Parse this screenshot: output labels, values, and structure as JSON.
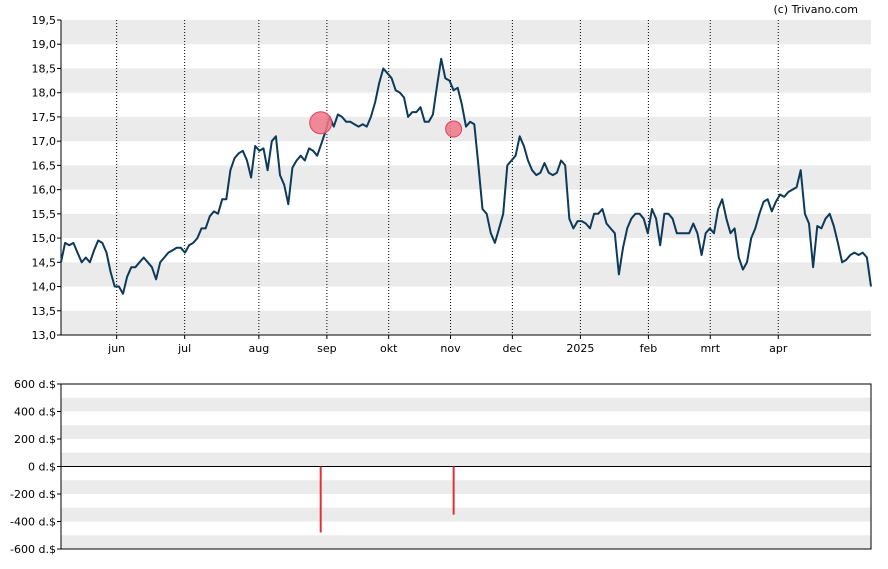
{
  "credit": "(c) Trivano.com",
  "colors": {
    "line": "#0d3a5a",
    "band": "#ebebeb",
    "marker": "#f0788a",
    "marker_stroke": "#e0405a",
    "bar": "#e0303a"
  },
  "chart_data": [
    {
      "type": "line",
      "title": "",
      "ylim": [
        13.0,
        19.5
      ],
      "y_ticks": [
        "13,0",
        "13,5",
        "14,0",
        "14,5",
        "15,0",
        "15,5",
        "16,0",
        "16,5",
        "17,0",
        "17,5",
        "18,0",
        "18,5",
        "19,0",
        "19,5"
      ],
      "grid": "alternating horizontal bands, dotted vertical month lines",
      "x_tick_labels": [
        "jun",
        "jul",
        "aug",
        "sep",
        "okt",
        "nov",
        "dec",
        "2025",
        "feb",
        "mrt",
        "apr"
      ],
      "x_tick_positions": [
        18,
        40,
        64,
        86,
        106,
        126,
        146,
        168,
        190,
        210,
        232
      ],
      "x_max": 262,
      "series": [
        {
          "values": [
            14.5,
            14.9,
            14.85,
            14.9,
            14.7,
            14.5,
            14.6,
            14.5,
            14.75,
            14.95,
            14.9,
            14.7,
            14.3,
            14.0,
            14.0,
            13.85,
            14.2,
            14.4,
            14.4,
            14.5,
            14.6,
            14.5,
            14.4,
            14.15,
            14.5,
            14.6,
            14.7,
            14.75,
            14.8,
            14.8,
            14.7,
            14.85,
            14.9,
            15.0,
            15.2,
            15.2,
            15.45,
            15.55,
            15.5,
            15.8,
            15.8,
            16.4,
            16.65,
            16.75,
            16.8,
            16.6,
            16.25,
            16.9,
            16.8,
            16.85,
            16.4,
            17.0,
            17.1,
            16.3,
            16.1,
            15.7,
            16.45,
            16.6,
            16.7,
            16.6,
            16.85,
            16.8,
            16.7,
            16.95,
            17.2,
            17.5,
            17.3,
            17.55,
            17.5,
            17.4,
            17.4,
            17.35,
            17.3,
            17.35,
            17.3,
            17.5,
            17.8,
            18.2,
            18.5,
            18.4,
            18.3,
            18.05,
            18.0,
            17.9,
            17.5,
            17.6,
            17.6,
            17.7,
            17.4,
            17.4,
            17.55,
            18.15,
            18.7,
            18.3,
            18.25,
            18.05,
            18.1,
            17.75,
            17.3,
            17.4,
            17.35,
            16.5,
            15.6,
            15.5,
            15.1,
            14.9,
            15.2,
            15.5,
            16.5,
            16.6,
            16.7,
            17.1,
            16.9,
            16.6,
            16.4,
            16.3,
            16.35,
            16.55,
            16.35,
            16.3,
            16.35,
            16.6,
            16.5,
            15.4,
            15.2,
            15.35,
            15.35,
            15.3,
            15.2,
            15.5,
            15.5,
            15.6,
            15.3,
            15.2,
            15.1,
            14.25,
            14.8,
            15.2,
            15.4,
            15.5,
            15.5,
            15.4,
            15.1,
            15.6,
            15.4,
            14.85,
            15.5,
            15.5,
            15.4,
            15.1,
            15.1,
            15.1,
            15.1,
            15.3,
            15.1,
            14.65,
            15.1,
            15.2,
            15.1,
            15.6,
            15.8,
            15.4,
            15.1,
            15.2,
            14.6,
            14.35,
            14.5,
            15.0,
            15.2,
            15.5,
            15.75,
            15.8,
            15.55,
            15.75,
            15.9,
            15.85,
            15.95,
            16.0,
            16.05,
            16.4,
            15.5,
            15.3,
            14.4,
            15.25,
            15.2,
            15.4,
            15.5,
            15.25,
            14.9,
            14.5,
            14.55,
            14.65,
            14.7,
            14.65,
            14.7,
            14.6,
            14.0
          ]
        }
      ],
      "markers": [
        {
          "x": 84,
          "y": 17.38,
          "size": "large"
        },
        {
          "x": 127,
          "y": 17.25,
          "size": "small"
        }
      ]
    },
    {
      "type": "bar",
      "title": "",
      "ylim": [
        -600,
        600
      ],
      "y_ticks": [
        "600 d.$",
        "400 d.$",
        "200 d.$",
        "0 d.$",
        "-200 d.$",
        "-400 d.$",
        "-600 d.$"
      ],
      "bars": [
        {
          "x": 84,
          "value": -480
        },
        {
          "x": 127,
          "value": -350
        }
      ]
    }
  ]
}
